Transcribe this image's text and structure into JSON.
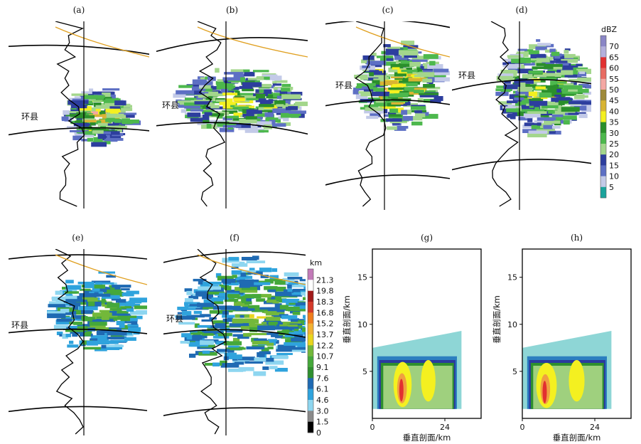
{
  "chart_data": {
    "type": "heatmap",
    "panels": [
      {
        "id": "a",
        "label": "(a)",
        "kind": "map",
        "city": "环县"
      },
      {
        "id": "b",
        "label": "(b)",
        "kind": "map",
        "city": "环县"
      },
      {
        "id": "c",
        "label": "(c)",
        "kind": "map",
        "city": "环县"
      },
      {
        "id": "d",
        "label": "(d)",
        "kind": "map",
        "city": "环县"
      },
      {
        "id": "e",
        "label": "(e)",
        "kind": "map",
        "city": "环县"
      },
      {
        "id": "f",
        "label": "(f)",
        "kind": "map",
        "city": "环县"
      },
      {
        "id": "g",
        "label": "(g)",
        "kind": "cross-section",
        "xlabel": "垂直剖面/km",
        "ylabel": "垂直剖面/km",
        "xticks": [
          "0",
          "24"
        ],
        "yticks": [
          "5",
          "10",
          "15"
        ],
        "xlim": [
          0,
          36
        ],
        "ylim": [
          0,
          18
        ]
      },
      {
        "id": "h",
        "label": "(h)",
        "kind": "cross-section",
        "xlabel": "垂直剖面/km",
        "ylabel": "垂直剖面/km",
        "xticks": [
          "0",
          "24"
        ],
        "yticks": [
          "5",
          "10",
          "15"
        ],
        "xlim": [
          0,
          36
        ],
        "ylim": [
          0,
          18
        ]
      }
    ],
    "reflectivity_scale": {
      "unit": "dBZ",
      "levels": [
        "70",
        "65",
        "60",
        "55",
        "50",
        "45",
        "40",
        "35",
        "30",
        "25",
        "20",
        "15",
        "10",
        "5"
      ],
      "colors": [
        "#8a86c6",
        "#b3b0dc",
        "#e23030",
        "#e86b62",
        "#f4a7a3",
        "#9e8a3a",
        "#d8b433",
        "#f4f020",
        "#2b8f2b",
        "#4db84d",
        "#a3d68c",
        "#2d3e9e",
        "#5d6fc4",
        "#c3cae8",
        "#1aa39c"
      ]
    },
    "height_scale": {
      "unit": "km",
      "levels": [
        "21.3",
        "19.8",
        "18.3",
        "16.8",
        "15.2",
        "13.7",
        "12.2",
        "10.7",
        "9.1",
        "7.6",
        "6.1",
        "4.6",
        "3.0",
        "1.5",
        "0"
      ],
      "colors": [
        "#c27ab8",
        "#ffffff",
        "#a11a1a",
        "#d43a2a",
        "#f07e1e",
        "#f2b233",
        "#e9d51e",
        "#73b83a",
        "#45a83a",
        "#2f8f2f",
        "#1f6ab3",
        "#2fa3dd",
        "#8ed6f0",
        "#8a8a8a",
        "#000000"
      ]
    }
  }
}
